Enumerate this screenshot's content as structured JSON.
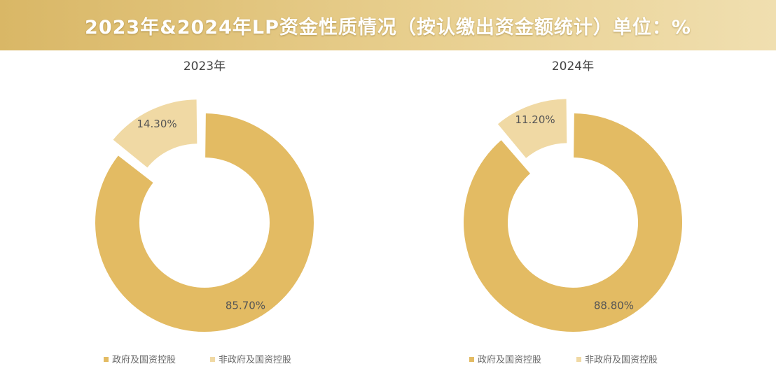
{
  "title": "2023年&2024年LP资金性质情况（按认缴出资金额统计）单位：%",
  "colors": {
    "government": "#e3bb63",
    "non_government": "#f0d9a4",
    "banner": "#dfbf74"
  },
  "chart_data": [
    {
      "type": "pie",
      "title": "2023年",
      "series": [
        {
          "name": "政府及国资控股",
          "value": 85.7,
          "label": "85.70%"
        },
        {
          "name": "非政府及国资控股",
          "value": 14.3,
          "label": "14.30%"
        }
      ],
      "legend": [
        "政府及国资控股",
        "非政府及国资控股"
      ],
      "legend_position": "bottom"
    },
    {
      "type": "pie",
      "title": "2024年",
      "series": [
        {
          "name": "政府及国资控股",
          "value": 88.8,
          "label": "88.80%"
        },
        {
          "name": "非政府及国资控股",
          "value": 11.2,
          "label": "11.20%"
        }
      ],
      "legend": [
        "政府及国资控股",
        "非政府及国资控股"
      ],
      "legend_position": "bottom"
    }
  ]
}
